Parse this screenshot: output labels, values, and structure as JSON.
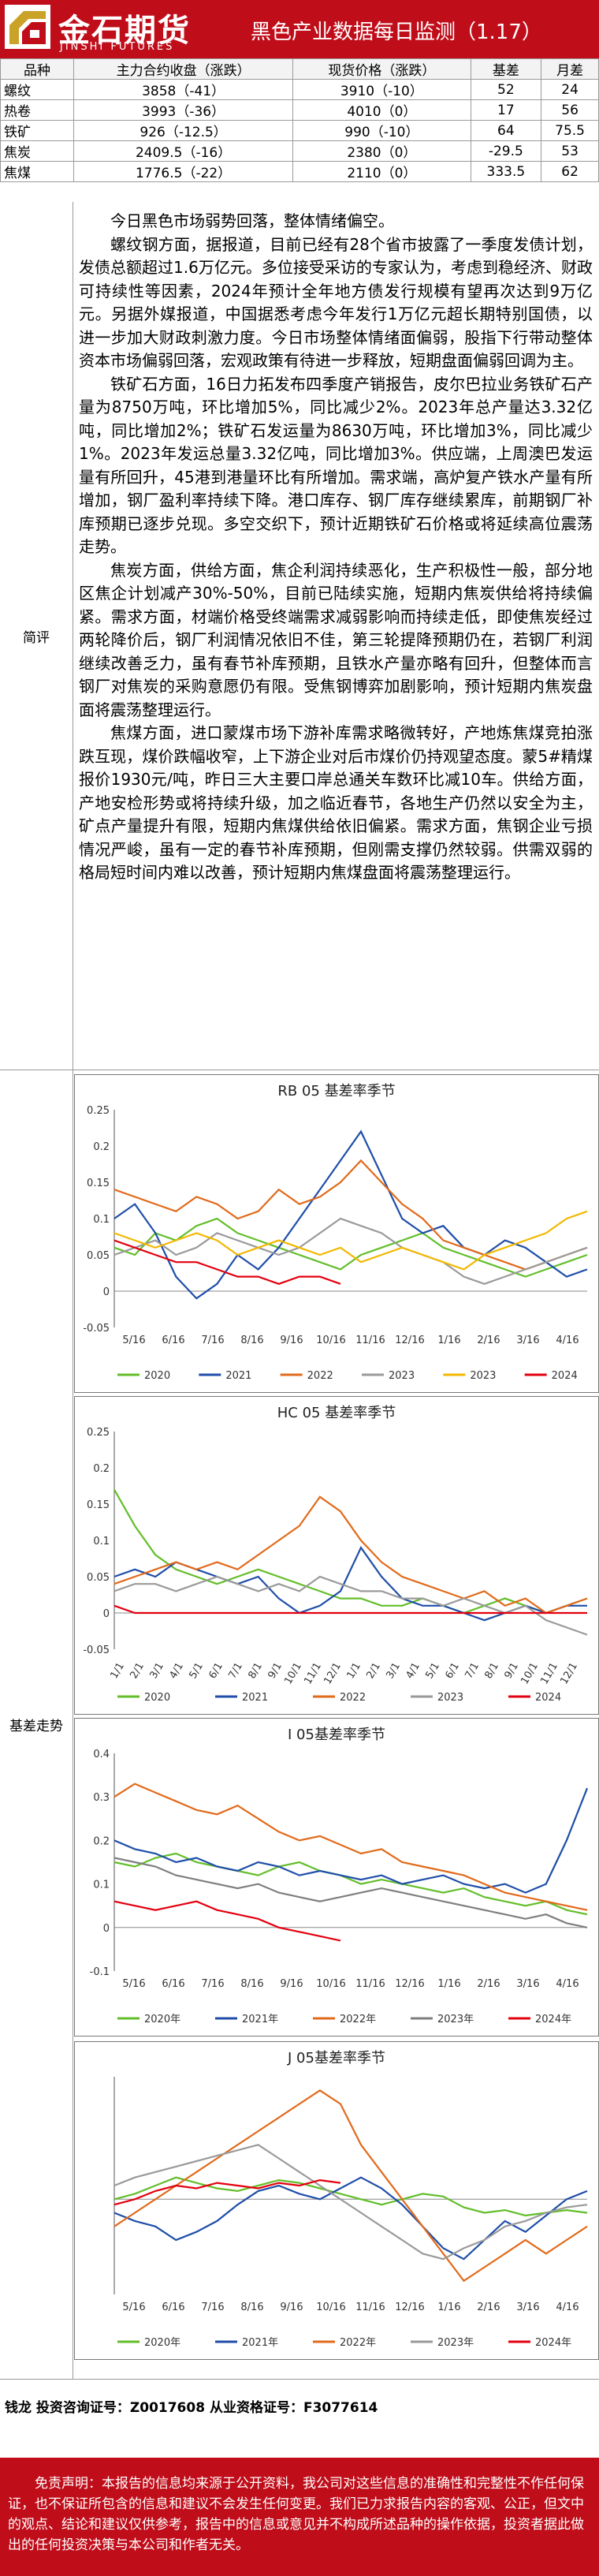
{
  "header": {
    "logo_cn": "金石期货",
    "logo_en": "JINSHI FUTURES",
    "title": "黑色产业数据每日监测（1.17）",
    "accent": "#c00d1a"
  },
  "table": {
    "headers": [
      "品种",
      "主力合约收盘（涨跌）",
      "现货价格（涨跌）",
      "基差",
      "月差"
    ],
    "rows": [
      {
        "name": "螺纹",
        "futures": "3858（-41）",
        "spot": "3910（-10）",
        "basis": "52",
        "spread": "24"
      },
      {
        "name": "热卷",
        "futures": "3993（-36）",
        "spot": "4010（0）",
        "basis": "17",
        "spread": "56"
      },
      {
        "name": "铁矿",
        "futures": "926（-12.5）",
        "spot": "990（-10）",
        "basis": "64",
        "spread": "75.5"
      },
      {
        "name": "焦炭",
        "futures": "2409.5（-16）",
        "spot": "2380（0）",
        "basis": "-29.5",
        "spread": "53"
      },
      {
        "name": "焦煤",
        "futures": "1776.5（-22）",
        "spot": "2110（0）",
        "basis": "333.5",
        "spread": "62"
      }
    ]
  },
  "summary": {
    "label": "简评",
    "paragraphs": [
      "今日黑色市场弱势回落，整体情绪偏空。",
      "螺纹钢方面，据报道，目前已经有28个省市披露了一季度发债计划，发债总额超过1.6万亿元。多位接受采访的专家认为，考虑到稳经济、财政可持续性等因素，2024年预计全年地方债发行规模有望再次达到9万亿元。另据外媒报道，中国据悉考虑今年发行1万亿元超长期特别国债，以进一步加大财政刺激力度。今日市场整体情绪面偏弱，股指下行带动整体资本市场偏弱回落，宏观政策有待进一步释放，短期盘面偏弱回调为主。",
      "铁矿石方面，16日力拓发布四季度产销报告，皮尔巴拉业务铁矿石产量为8750万吨，环比增加5%，同比减少2%。2023年总产量达3.32亿吨，同比增加2%；铁矿石发运量为8630万吨，环比增加3%，同比减少1%。2023年发运总量3.32亿吨，同比增加3%。供应端，上周澳巴发运量有所回升，45港到港量环比有所增加。需求端，高炉复产铁水产量有所增加，钢厂盈利率持续下降。港口库存、钢厂库存继续累库，前期钢厂补库预期已逐步兑现。多空交织下，预计近期铁矿石价格或将延续高位震荡走势。",
      "焦炭方面，供给方面，焦企利润持续恶化，生产积极性一般，部分地区焦企计划减产30%-50%，目前已陆续实施，短期内焦炭供给将持续偏紧。需求方面，材端价格受终端需求减弱影响而持续走低，即使焦炭经过两轮降价后，钢厂利润情况依旧不佳，第三轮提降预期仍在，若钢厂利润继续改善乏力，虽有春节补库预期，且铁水产量亦略有回升，但整体而言钢厂对焦炭的采购意愿仍有限。受焦钢博弈加剧影响，预计短期内焦炭盘面将震荡整理运行。",
      "焦煤方面，进口蒙煤市场下游补库需求略微转好，产地炼焦煤竞拍涨跌互现，煤价跌幅收窄，上下游企业对后市煤价仍持观望态度。蒙5#精煤报价1930元/吨，昨日三大主要口岸总通关车数环比减10车。供给方面，产地安检形势或将持续升级，加之临近春节，各地生产仍然以安全为主，矿点产量提升有限，短期内焦煤供给依旧偏紧。需求方面，焦钢企业亏损情况严峻，虽有一定的春节补库预期，但刚需支撑仍然较弱。供需双弱的格局短时间内难以改善，预计短期内焦煤盘面将震荡整理运行。"
    ]
  },
  "charts_section": {
    "label": "基差走势"
  },
  "chart_data": [
    {
      "type": "line",
      "title": "RB 05 基差率季节",
      "x_ticks": [
        "5/16",
        "6/16",
        "7/16",
        "8/16",
        "9/16",
        "10/16",
        "11/16",
        "12/16",
        "1/16",
        "2/16",
        "3/16",
        "4/16"
      ],
      "y_ticks": [
        "0.25",
        "0.2",
        "0.15",
        "0.1",
        "0.05",
        "0",
        "-0.05"
      ],
      "ylim": [
        -0.05,
        0.25
      ],
      "series": [
        {
          "name": "2020",
          "color": "#63be2a",
          "values": [
            0.06,
            0.05,
            0.08,
            0.07,
            0.09,
            0.1,
            0.08,
            0.07,
            0.06,
            0.05,
            0.04,
            0.03,
            0.05,
            0.06,
            0.07,
            0.08,
            0.06,
            0.05,
            0.04,
            0.03,
            0.02,
            0.03,
            0.04,
            0.05
          ]
        },
        {
          "name": "2021",
          "color": "#1f4ea8",
          "values": [
            0.1,
            0.12,
            0.08,
            0.02,
            -0.01,
            0.01,
            0.05,
            0.03,
            0.06,
            0.1,
            0.14,
            0.18,
            0.22,
            0.16,
            0.1,
            0.08,
            0.09,
            0.06,
            0.05,
            0.07,
            0.06,
            0.04,
            0.02,
            0.03
          ]
        },
        {
          "name": "2022",
          "color": "#e16a1b",
          "values": [
            0.14,
            0.13,
            0.12,
            0.11,
            0.13,
            0.12,
            0.1,
            0.11,
            0.14,
            0.12,
            0.13,
            0.15,
            0.18,
            0.15,
            0.12,
            0.1,
            0.07,
            0.06,
            0.05,
            0.04,
            0.03,
            0.04,
            0.05,
            0.06
          ]
        },
        {
          "name": "2023",
          "color": "#9a9a9a",
          "values": [
            0.05,
            0.06,
            0.07,
            0.05,
            0.06,
            0.08,
            0.07,
            0.06,
            0.05,
            0.06,
            0.08,
            0.1,
            0.09,
            0.08,
            0.06,
            0.05,
            0.04,
            0.02,
            0.01,
            0.02,
            0.03,
            0.04,
            0.05,
            0.06
          ]
        },
        {
          "name": "2023",
          "color": "#f2b800",
          "values": [
            0.08,
            0.07,
            0.06,
            0.07,
            0.08,
            0.07,
            0.05,
            0.06,
            0.07,
            0.06,
            0.05,
            0.06,
            0.04,
            0.05,
            0.06,
            0.05,
            0.04,
            0.03,
            0.05,
            0.06,
            0.07,
            0.08,
            0.1,
            0.11
          ]
        },
        {
          "name": "2024",
          "color": "#e3000f",
          "values": [
            0.07,
            0.06,
            0.05,
            0.04,
            0.04,
            0.03,
            0.02,
            0.02,
            0.01,
            0.02,
            0.02,
            0.01
          ]
        }
      ]
    },
    {
      "type": "line",
      "title": "HC 05 基差率季节",
      "x_ticks": [
        "1/1",
        "2/1",
        "3/1",
        "4/1",
        "5/1",
        "6/1",
        "7/1",
        "8/1",
        "9/1",
        "10/1",
        "11/1",
        "12/1",
        "1/1",
        "2/1",
        "3/1",
        "4/1",
        "5/1",
        "6/1",
        "7/1",
        "8/1",
        "9/1",
        "10/1",
        "11/1",
        "12/1"
      ],
      "y_ticks": [
        "0.25",
        "0.2",
        "0.15",
        "0.1",
        "0.05",
        "0",
        "-0.05"
      ],
      "ylim": [
        -0.05,
        0.25
      ],
      "series": [
        {
          "name": "2020",
          "color": "#63be2a",
          "values": [
            0.17,
            0.12,
            0.08,
            0.06,
            0.05,
            0.04,
            0.05,
            0.06,
            0.05,
            0.04,
            0.03,
            0.02,
            0.02,
            0.01,
            0.01,
            0.02,
            0.01,
            0.0,
            0.01,
            0.02,
            0.01,
            0.0,
            0.01,
            0.02
          ]
        },
        {
          "name": "2021",
          "color": "#1f4ea8",
          "values": [
            0.05,
            0.06,
            0.05,
            0.07,
            0.06,
            0.05,
            0.04,
            0.05,
            0.02,
            0.0,
            0.01,
            0.03,
            0.09,
            0.05,
            0.02,
            0.01,
            0.01,
            0.0,
            -0.01,
            0.0,
            0.01,
            0.0,
            0.01,
            0.01
          ]
        },
        {
          "name": "2022",
          "color": "#e16a1b",
          "values": [
            0.04,
            0.05,
            0.06,
            0.07,
            0.06,
            0.07,
            0.06,
            0.08,
            0.1,
            0.12,
            0.16,
            0.14,
            0.1,
            0.07,
            0.05,
            0.04,
            0.03,
            0.02,
            0.03,
            0.01,
            0.02,
            0.0,
            0.01,
            0.02
          ]
        },
        {
          "name": "2023",
          "color": "#9a9a9a",
          "values": [
            0.03,
            0.04,
            0.04,
            0.03,
            0.04,
            0.05,
            0.04,
            0.03,
            0.04,
            0.03,
            0.05,
            0.04,
            0.03,
            0.03,
            0.02,
            0.02,
            0.01,
            0.02,
            0.01,
            0.0,
            0.01,
            -0.01,
            -0.02,
            -0.03
          ]
        },
        {
          "name": "2024",
          "color": "#e3000f",
          "values": [
            0.01,
            0.0,
            0.0,
            0.0,
            0.0,
            0.0,
            0.0,
            0.0,
            0.0,
            0.0,
            0.0,
            0.0,
            0.0,
            0.0,
            0.0,
            0.0,
            0.0,
            0.0,
            0.0,
            0.0,
            0.0,
            0.0,
            0.0,
            0.0
          ]
        }
      ]
    },
    {
      "type": "line",
      "title": "I 05基差率季节",
      "x_ticks": [
        "5/16",
        "6/16",
        "7/16",
        "8/16",
        "9/16",
        "10/16",
        "11/16",
        "12/16",
        "1/16",
        "2/16",
        "3/16",
        "4/16"
      ],
      "y_ticks": [
        "0.4",
        "0.3",
        "0.2",
        "0.1",
        "0",
        "-0.1"
      ],
      "ylim": [
        -0.1,
        0.4
      ],
      "series": [
        {
          "name": "2020年",
          "color": "#63be2a",
          "values": [
            0.15,
            0.14,
            0.16,
            0.17,
            0.15,
            0.14,
            0.13,
            0.12,
            0.14,
            0.15,
            0.13,
            0.12,
            0.1,
            0.11,
            0.1,
            0.09,
            0.08,
            0.09,
            0.07,
            0.06,
            0.05,
            0.06,
            0.04,
            0.03
          ]
        },
        {
          "name": "2021年",
          "color": "#1f4ea8",
          "values": [
            0.2,
            0.18,
            0.17,
            0.15,
            0.16,
            0.14,
            0.13,
            0.15,
            0.14,
            0.12,
            0.13,
            0.12,
            0.11,
            0.12,
            0.1,
            0.11,
            0.12,
            0.1,
            0.09,
            0.1,
            0.08,
            0.1,
            0.2,
            0.32
          ]
        },
        {
          "name": "2022年",
          "color": "#e16a1b",
          "values": [
            0.3,
            0.33,
            0.31,
            0.29,
            0.27,
            0.26,
            0.28,
            0.25,
            0.22,
            0.2,
            0.21,
            0.19,
            0.17,
            0.18,
            0.15,
            0.14,
            0.13,
            0.12,
            0.1,
            0.08,
            0.07,
            0.06,
            0.05,
            0.04
          ]
        },
        {
          "name": "2023年",
          "color": "#7f7f7f",
          "values": [
            0.16,
            0.15,
            0.14,
            0.12,
            0.11,
            0.1,
            0.09,
            0.1,
            0.08,
            0.07,
            0.06,
            0.07,
            0.08,
            0.09,
            0.08,
            0.07,
            0.06,
            0.05,
            0.04,
            0.03,
            0.02,
            0.03,
            0.01,
            0.0
          ]
        },
        {
          "name": "2024年",
          "color": "#e3000f",
          "values": [
            0.06,
            0.05,
            0.04,
            0.05,
            0.06,
            0.04,
            0.03,
            0.02,
            0.0,
            -0.01,
            -0.02,
            -0.03
          ]
        }
      ]
    },
    {
      "type": "line",
      "title": "J 05基差率季节",
      "x_ticks": [
        "5/16",
        "6/16",
        "7/16",
        "8/16",
        "9/16",
        "10/16",
        "11/16",
        "12/16",
        "1/16",
        "2/16",
        "3/16",
        "4/16"
      ],
      "y_ticks": [],
      "ylim": [
        -0.35,
        0.45
      ],
      "series": [
        {
          "name": "2020年",
          "color": "#63be2a",
          "values": [
            0.0,
            0.02,
            0.05,
            0.08,
            0.06,
            0.04,
            0.03,
            0.05,
            0.07,
            0.06,
            0.04,
            0.02,
            0.0,
            -0.02,
            0.0,
            0.02,
            0.01,
            -0.03,
            -0.05,
            -0.04,
            -0.06,
            -0.05,
            -0.04,
            -0.05
          ]
        },
        {
          "name": "2021年",
          "color": "#1f4ea8",
          "values": [
            -0.05,
            -0.08,
            -0.1,
            -0.15,
            -0.12,
            -0.08,
            -0.02,
            0.03,
            0.05,
            0.02,
            0.0,
            0.04,
            0.08,
            0.04,
            -0.02,
            -0.1,
            -0.18,
            -0.22,
            -0.15,
            -0.08,
            -0.12,
            -0.06,
            0.0,
            0.03
          ]
        },
        {
          "name": "2022年",
          "color": "#e16a1b",
          "values": [
            -0.1,
            -0.05,
            0.0,
            0.05,
            0.1,
            0.15,
            0.2,
            0.25,
            0.3,
            0.35,
            0.4,
            0.35,
            0.2,
            0.1,
            0.0,
            -0.1,
            -0.2,
            -0.3,
            -0.25,
            -0.2,
            -0.15,
            -0.2,
            -0.15,
            -0.1
          ]
        },
        {
          "name": "2023年",
          "color": "#9a9a9a",
          "values": [
            0.05,
            0.08,
            0.1,
            0.12,
            0.14,
            0.16,
            0.18,
            0.2,
            0.15,
            0.1,
            0.05,
            0.0,
            -0.05,
            -0.1,
            -0.15,
            -0.2,
            -0.22,
            -0.18,
            -0.15,
            -0.1,
            -0.08,
            -0.05,
            -0.03,
            -0.02
          ]
        },
        {
          "name": "2024年",
          "color": "#e3000f",
          "values": [
            -0.02,
            0.0,
            0.03,
            0.05,
            0.04,
            0.06,
            0.05,
            0.04,
            0.06,
            0.05,
            0.07,
            0.06
          ]
        }
      ]
    }
  ],
  "footer": {
    "contact": "钱龙 投资咨询证号：Z0017608 从业资格证号：F3077614",
    "disclaimer": "免责声明：本报告的信息均来源于公开资料，我公司对这些信息的准确性和完整性不作任何保证，也不保证所包含的信息和建议不会发生任何变更。我们已力求报告内容的客观、公正，但文中的观点、结论和建议仅供参考，报告中的信息或意见并不构成所述品种的操作依据，投资者据此做出的任何投资决策与本公司和作者无关。"
  }
}
